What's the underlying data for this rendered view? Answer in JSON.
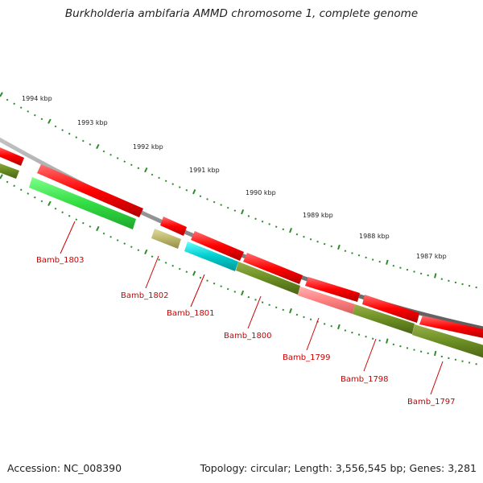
{
  "title": "Burkholderia ambifaria AMMD chromosome 1, complete genome",
  "footer": {
    "accession": "Accession: NC_008390",
    "summary": "Topology: circular; Length: 3,556,545 bp; Genes: 3,281"
  },
  "ruler": {
    "tick_labels": [
      "1994 kbp",
      "1993 kbp",
      "1992 kbp",
      "1991 kbp",
      "1990 kbp",
      "1989 kbp",
      "1988 kbp",
      "1987 kbp"
    ]
  },
  "genes": [
    {
      "locus": "Bamb_1803"
    },
    {
      "locus": "Bamb_1802"
    },
    {
      "locus": "Bamb_1801"
    },
    {
      "locus": "Bamb_1800"
    },
    {
      "locus": "Bamb_1799"
    },
    {
      "locus": "Bamb_1798"
    },
    {
      "locus": "Bamb_1797"
    }
  ],
  "colors": {
    "backbone": "#8a8a8a",
    "cds": "#ff0000",
    "function_olive": "#6b8e23",
    "function_green": "#33dd44",
    "function_khaki": "#bdb76b",
    "function_cyan": "#00cccc",
    "function_pink": "#ff8080",
    "tick": "#2e8b2e",
    "label": "#cc0000"
  }
}
